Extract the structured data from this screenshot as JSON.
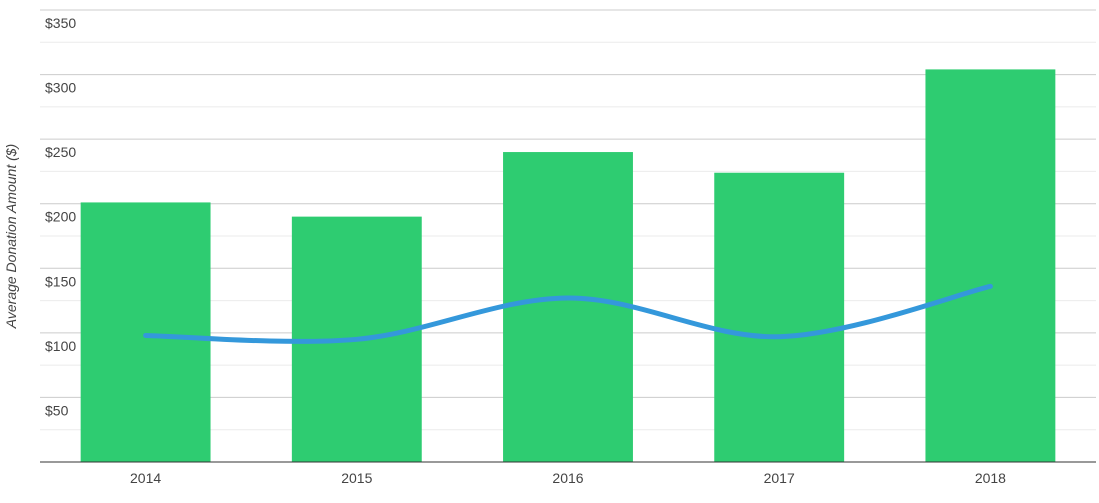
{
  "chart_data": {
    "type": "bar",
    "categories": [
      "2014",
      "2015",
      "2016",
      "2017",
      "2018"
    ],
    "series": [
      {
        "type": "bar",
        "values": [
          201,
          190,
          240,
          224,
          304
        ],
        "color": "#2ecc71"
      },
      {
        "type": "line",
        "smooth": true,
        "values": [
          98,
          95,
          127,
          97,
          136
        ],
        "color": "#3498db"
      }
    ],
    "ylabel": "Average Donation Amount ($)",
    "ylim": [
      0,
      350
    ],
    "yticks": [
      50,
      100,
      150,
      200,
      250,
      300,
      350
    ],
    "ytick_labels": [
      "$50",
      "$100",
      "$150",
      "$200",
      "$250",
      "$300",
      "$350"
    ],
    "grid": true,
    "minor_grid": true,
    "legend": "none"
  }
}
